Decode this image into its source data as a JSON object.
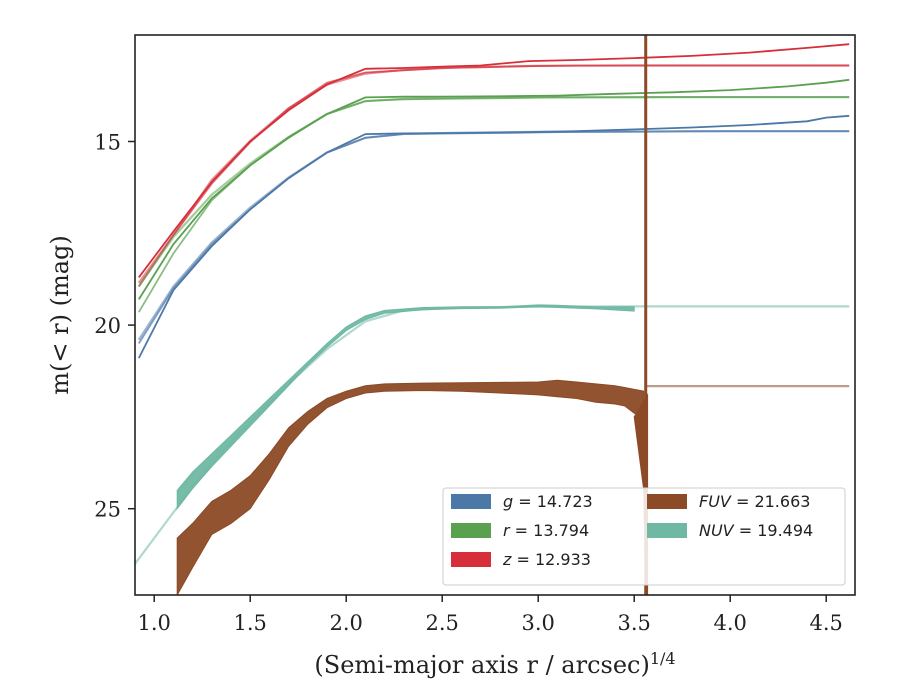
{
  "chart_data": {
    "type": "line",
    "xlabel": "(Semi-major axis r / arcsec)",
    "xlabel_sup": "1/4",
    "ylabel": "m(< r) (mag)",
    "xlim": [
      0.9,
      4.65
    ],
    "ylim": [
      27.35,
      12.1
    ],
    "y_inverted": true,
    "grid": false,
    "x_ticks": [
      {
        "value": 1.0,
        "label": "1.0"
      },
      {
        "value": 1.5,
        "label": "1.5"
      },
      {
        "value": 2.0,
        "label": "2.0"
      },
      {
        "value": 2.5,
        "label": "2.5"
      },
      {
        "value": 3.0,
        "label": "3.0"
      },
      {
        "value": 3.5,
        "label": "3.5"
      },
      {
        "value": 4.0,
        "label": "4.0"
      },
      {
        "value": 4.5,
        "label": "4.5"
      }
    ],
    "y_ticks": [
      {
        "value": 15,
        "label": "15"
      },
      {
        "value": 20,
        "label": "20"
      },
      {
        "value": 25,
        "label": "25"
      }
    ],
    "legend": {
      "location": "lower-right",
      "entries": [
        {
          "var": "g",
          "value": "14.723",
          "color": "#4c78a8"
        },
        {
          "var": "r",
          "value": "13.794",
          "color": "#59a14f"
        },
        {
          "var": "z",
          "value": "12.933",
          "color": "#d62f3a"
        },
        {
          "var": "FUV",
          "value": "21.663",
          "color": "#8c4a26"
        },
        {
          "var": "NUV",
          "value": "19.494",
          "color": "#6fb8a4"
        }
      ]
    },
    "series": [
      {
        "name": "z",
        "color": "#d62f3a",
        "style": "line",
        "total": 12.933,
        "x": [
          0.92,
          1.1,
          1.3,
          1.5,
          1.7,
          1.9,
          2.1,
          2.3,
          2.5,
          2.7,
          2.95,
          3.2,
          3.5,
          3.8,
          4.1,
          4.4,
          4.62
        ],
        "y": [
          18.7,
          17.45,
          16.1,
          15.0,
          14.15,
          13.45,
          13.02,
          13.0,
          12.96,
          12.93,
          12.81,
          12.78,
          12.73,
          12.67,
          12.58,
          12.45,
          12.35
        ],
        "y_alt": [
          18.95,
          17.55,
          16.15,
          15.02,
          14.1,
          13.4,
          13.12,
          13.06,
          13.0,
          12.98,
          12.95,
          12.93,
          12.93,
          12.93,
          12.93,
          12.93,
          12.93
        ],
        "model": {
          "x": [
            0.92,
            1.1,
            1.3,
            1.5,
            1.7,
            1.9,
            2.1,
            2.3,
            2.6,
            3.0,
            3.5,
            4.0,
            4.62
          ],
          "y": [
            18.85,
            17.55,
            16.05,
            14.98,
            14.1,
            13.45,
            13.15,
            13.05,
            12.98,
            12.94,
            12.93,
            12.93,
            12.93
          ]
        }
      },
      {
        "name": "r",
        "color": "#59a14f",
        "style": "line",
        "total": 13.794,
        "x": [
          0.92,
          1.1,
          1.3,
          1.5,
          1.7,
          1.9,
          2.1,
          2.3,
          2.5,
          2.8,
          3.1,
          3.4,
          3.7,
          4.0,
          4.3,
          4.5,
          4.62
        ],
        "y": [
          19.3,
          17.8,
          16.55,
          15.65,
          14.9,
          14.25,
          13.8,
          13.78,
          13.78,
          13.77,
          13.75,
          13.7,
          13.66,
          13.6,
          13.5,
          13.4,
          13.32
        ],
        "y_alt": [
          19.65,
          18.05,
          16.6,
          15.65,
          14.88,
          14.25,
          13.9,
          13.85,
          13.84,
          13.82,
          13.8,
          13.8,
          13.79,
          13.79,
          13.79,
          13.79,
          13.79
        ],
        "model": {
          "x": [
            0.92,
            1.1,
            1.3,
            1.5,
            1.7,
            1.9,
            2.1,
            2.3,
            2.6,
            3.0,
            3.5,
            4.0,
            4.62
          ],
          "y": [
            18.95,
            17.6,
            16.45,
            15.6,
            14.88,
            14.25,
            13.9,
            13.84,
            13.81,
            13.8,
            13.79,
            13.79,
            13.79
          ]
        }
      },
      {
        "name": "g",
        "color": "#4c78a8",
        "style": "line",
        "total": 14.723,
        "x": [
          0.92,
          1.1,
          1.3,
          1.5,
          1.7,
          1.9,
          2.1,
          2.3,
          2.6,
          2.9,
          3.2,
          3.5,
          3.8,
          4.1,
          4.4,
          4.5,
          4.62
        ],
        "y": [
          20.9,
          19.05,
          17.85,
          16.85,
          16.0,
          15.3,
          14.8,
          14.78,
          14.77,
          14.75,
          14.72,
          14.67,
          14.62,
          14.55,
          14.45,
          14.35,
          14.3
        ],
        "y_alt": [
          20.5,
          19.0,
          17.8,
          16.85,
          16.0,
          15.3,
          14.9,
          14.8,
          14.78,
          14.76,
          14.74,
          14.73,
          14.72,
          14.72,
          14.72,
          14.72,
          14.72
        ],
        "model": {
          "x": [
            0.92,
            1.1,
            1.3,
            1.5,
            1.7,
            1.9,
            2.1,
            2.3,
            2.6,
            3.0,
            3.5,
            4.0,
            4.62
          ],
          "y": [
            20.4,
            18.95,
            17.75,
            16.8,
            15.98,
            15.3,
            14.9,
            14.79,
            14.76,
            14.74,
            14.73,
            14.72,
            14.72
          ]
        }
      },
      {
        "name": "NUV",
        "color": "#6fb8a4",
        "style": "band",
        "total": 19.494,
        "x": [
          1.12,
          1.2,
          1.3,
          1.4,
          1.5,
          1.6,
          1.7,
          1.8,
          1.9,
          2.0,
          2.1,
          2.2,
          2.4,
          2.6,
          2.8,
          3.0,
          3.1,
          3.3,
          3.5
        ],
        "y_low": [
          24.5,
          24.0,
          23.5,
          23.0,
          22.5,
          22.0,
          21.5,
          21.0,
          20.5,
          20.05,
          19.75,
          19.6,
          19.52,
          19.5,
          19.5,
          19.45,
          19.46,
          19.5,
          19.5
        ],
        "y_high": [
          25.0,
          24.45,
          23.85,
          23.3,
          22.75,
          22.2,
          21.65,
          21.1,
          20.6,
          20.15,
          19.85,
          19.68,
          19.58,
          19.55,
          19.54,
          19.5,
          19.52,
          19.56,
          19.62
        ],
        "model": {
          "x": [
            0.9,
            1.1,
            1.3,
            1.5,
            1.7,
            1.9,
            2.1,
            2.3,
            2.6,
            3.0,
            3.5,
            4.0,
            4.62
          ],
          "y": [
            26.5,
            25.1,
            23.75,
            22.65,
            21.6,
            20.65,
            19.9,
            19.6,
            19.52,
            19.5,
            19.49,
            19.49,
            19.49
          ]
        }
      },
      {
        "name": "FUV",
        "color": "#8c4a26",
        "style": "band",
        "total": 21.663,
        "x": [
          1.12,
          1.2,
          1.3,
          1.4,
          1.5,
          1.6,
          1.7,
          1.8,
          1.9,
          2.0,
          2.1,
          2.2,
          2.4,
          2.6,
          2.8,
          3.0,
          3.1,
          3.2,
          3.3,
          3.4,
          3.45,
          3.5,
          3.55
        ],
        "y_low": [
          25.8,
          25.4,
          24.8,
          24.5,
          24.1,
          23.5,
          22.8,
          22.35,
          22.0,
          21.8,
          21.65,
          21.6,
          21.58,
          21.57,
          21.56,
          21.55,
          21.5,
          21.55,
          21.6,
          21.65,
          21.7,
          21.75,
          21.8
        ],
        "y_high": [
          27.35,
          26.6,
          25.7,
          25.4,
          25.0,
          24.2,
          23.3,
          22.7,
          22.25,
          22.0,
          21.85,
          21.8,
          21.78,
          21.8,
          21.85,
          21.9,
          21.95,
          22.0,
          22.1,
          22.15,
          22.2,
          22.4,
          22.5
        ],
        "drop": {
          "x": [
            3.5,
            3.55,
            3.56
          ],
          "y": [
            22.5,
            24.5,
            27.35
          ]
        },
        "spike": {
          "x": 3.56
        },
        "model": {
          "x": [
            3.56,
            4.0,
            4.62
          ],
          "y": [
            21.66,
            21.66,
            21.66
          ]
        }
      }
    ]
  }
}
